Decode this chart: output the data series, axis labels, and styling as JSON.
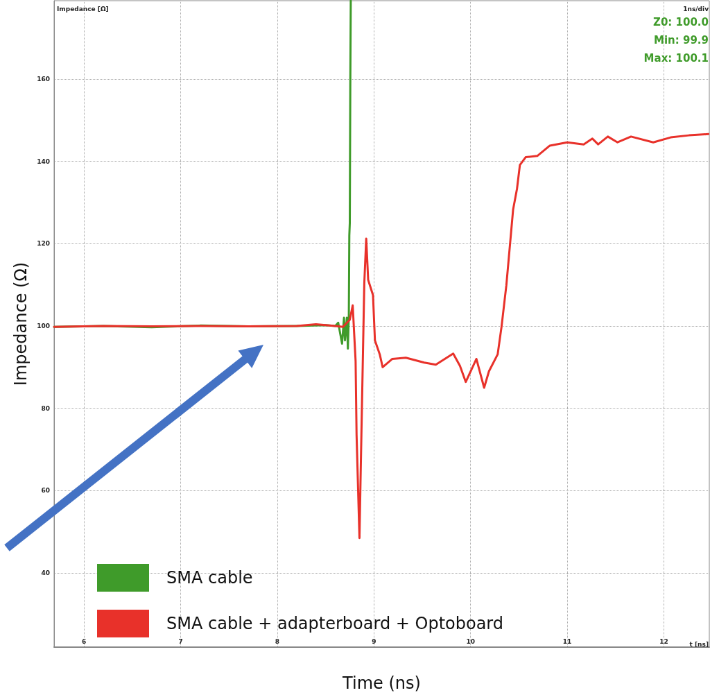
{
  "chart_data": {
    "type": "line",
    "xlabel": "Time (ns)",
    "ylabel": "Impedance (Ω)",
    "xlim": [
      5.69,
      12.47
    ],
    "ylim": [
      22,
      179
    ],
    "xticks": [
      6,
      7,
      8,
      9,
      10,
      11,
      12
    ],
    "yticks": [
      40,
      60,
      80,
      100,
      120,
      140,
      160
    ],
    "grid": true,
    "legend": "bottom left",
    "marker": "none",
    "line_style": "solid",
    "annotations": [
      "Impedance [Ω]",
      "1ns/div",
      "Z0: 100.0",
      "Min: 99.9",
      "Max: 100.1",
      "t [ns]"
    ],
    "series": [
      {
        "name": "SMA cable",
        "color": "#3f9b2a",
        "x": [
          5.69,
          6.2,
          6.7,
          7.2,
          7.7,
          8.2,
          8.5,
          8.6,
          8.63,
          8.67,
          8.69,
          8.7,
          8.72,
          8.73,
          8.74,
          8.745,
          8.75,
          8.755,
          8.76
        ],
        "values": [
          99.8,
          100,
          99.7,
          100.1,
          99.9,
          100,
          100.2,
          100,
          100.8,
          95.7,
          102,
          96.5,
          102,
          94.5,
          102.5,
          122,
          125,
          158,
          179
        ]
      },
      {
        "name": "SMA cable + adapterboard + Optoboard",
        "color": "#e8312a",
        "x": [
          5.69,
          6.2,
          6.7,
          7.2,
          7.7,
          8.2,
          8.4,
          8.6,
          8.68,
          8.75,
          8.78,
          8.81,
          8.82,
          8.85,
          8.87,
          8.9,
          8.92,
          8.94,
          8.99,
          9.01,
          9.06,
          9.09,
          9.19,
          9.33,
          9.52,
          9.64,
          9.82,
          9.89,
          9.95,
          10.06,
          10.14,
          10.19,
          10.28,
          10.32,
          10.37,
          10.41,
          10.44,
          10.48,
          10.51,
          10.57,
          10.69,
          10.82,
          11.0,
          11.17,
          11.26,
          11.32,
          11.42,
          11.52,
          11.66,
          11.89,
          12.07,
          12.26,
          12.46
        ],
        "values": [
          99.8,
          100,
          99.9,
          100,
          99.9,
          100,
          100.4,
          100,
          99.8,
          101.5,
          105,
          91.5,
          73.6,
          48.5,
          73.6,
          110.4,
          121.2,
          111.2,
          107.5,
          96.5,
          93.1,
          90,
          92,
          92.3,
          91.1,
          90.6,
          93.3,
          90.3,
          86.4,
          92,
          85,
          89,
          93.1,
          99.8,
          109.9,
          120.4,
          128.3,
          133.3,
          139.1,
          141,
          141.3,
          143.8,
          144.6,
          144.1,
          145.5,
          144.1,
          146,
          144.6,
          146,
          144.6,
          145.8,
          146.3,
          146.6
        ]
      }
    ]
  }
}
